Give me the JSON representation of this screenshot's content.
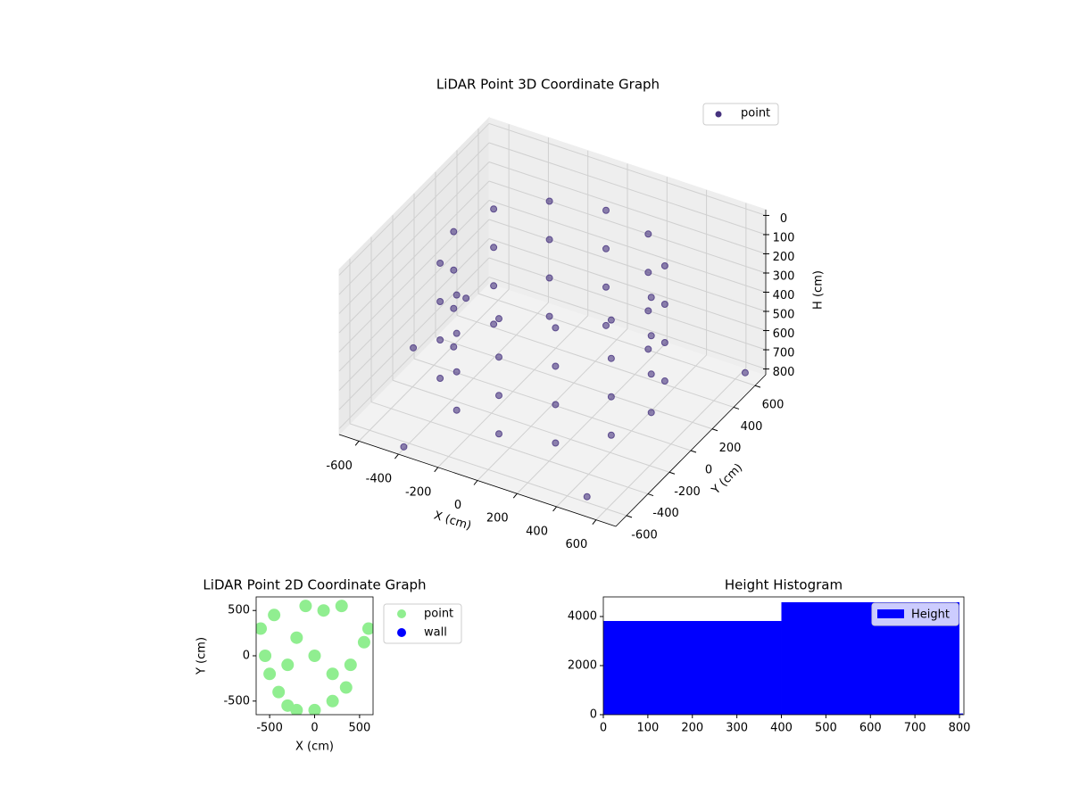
{
  "chart_data": [
    {
      "type": "scatter3d",
      "title": "LiDAR Point 3D Coordinate Graph",
      "x_label": "X (cm)",
      "y_label": "Y (cm)",
      "z_label": "H (cm)",
      "xlim": [
        -700,
        700
      ],
      "ylim": [
        -700,
        700
      ],
      "zlim": [
        830,
        -30
      ],
      "xticks": [
        -600,
        -400,
        -200,
        0,
        200,
        400,
        600
      ],
      "yticks": [
        -600,
        -400,
        -200,
        0,
        200,
        400,
        600
      ],
      "zticks": [
        0,
        100,
        200,
        300,
        400,
        500,
        600,
        700,
        800
      ],
      "grid": true,
      "legend": "upper right",
      "series": [
        {
          "name": "point",
          "color": "#46327e",
          "x": [
            500,
            433,
            250,
            0,
            -250,
            -433,
            -500,
            -433,
            -250,
            0,
            250,
            433,
            500,
            433,
            250,
            0,
            -250,
            -433,
            -500,
            -433,
            -250,
            0,
            250,
            433,
            500,
            433,
            250,
            0,
            -250,
            -433,
            -500,
            -433,
            -250,
            0,
            250,
            433,
            500,
            433,
            250,
            0,
            -250,
            -433,
            -500,
            -433,
            -250,
            0,
            250,
            433,
            -650,
            -600,
            500,
            650,
            -400
          ],
          "y": [
            0,
            250,
            433,
            500,
            433,
            250,
            0,
            -250,
            -433,
            -500,
            -433,
            -250,
            0,
            250,
            433,
            500,
            433,
            250,
            0,
            -250,
            -433,
            -500,
            -433,
            -250,
            0,
            250,
            433,
            500,
            433,
            250,
            0,
            -250,
            -433,
            -500,
            -433,
            -250,
            0,
            250,
            433,
            500,
            433,
            250,
            0,
            -250,
            -433,
            -500,
            -433,
            -250,
            -100,
            300,
            -600,
            600,
            -650
          ],
          "h": [
            100,
            100,
            100,
            100,
            100,
            100,
            100,
            100,
            100,
            100,
            100,
            100,
            300,
            300,
            300,
            300,
            300,
            300,
            300,
            300,
            300,
            300,
            300,
            300,
            500,
            500,
            500,
            500,
            500,
            500,
            500,
            500,
            500,
            500,
            500,
            500,
            700,
            700,
            700,
            700,
            700,
            700,
            700,
            700,
            700,
            700,
            700,
            700,
            700,
            650,
            800,
            780,
            820
          ]
        }
      ]
    },
    {
      "type": "scatter",
      "title": "LiDAR Point 2D Coordinate Graph",
      "x_label": "X (cm)",
      "y_label": "Y (cm)",
      "xlim": [
        -650,
        650
      ],
      "ylim": [
        -650,
        650
      ],
      "xticks": [
        -500,
        0,
        500
      ],
      "yticks": [
        -500,
        0,
        500
      ],
      "legend": "outside right",
      "series": [
        {
          "name": "point",
          "color": "#90ee90",
          "x": [
            -600,
            -550,
            -500,
            -400,
            -300,
            -200,
            0,
            200,
            350,
            400,
            100,
            -100,
            300,
            -450,
            600,
            550,
            -200,
            0,
            -300,
            200
          ],
          "y": [
            300,
            0,
            -200,
            -400,
            -550,
            -600,
            -600,
            -500,
            -350,
            -100,
            500,
            550,
            550,
            450,
            300,
            150,
            200,
            0,
            -100,
            -200
          ]
        },
        {
          "name": "wall",
          "color": "#0000ff",
          "x": [],
          "y": []
        }
      ]
    },
    {
      "type": "histogram",
      "title": "Height Histogram",
      "bins": [
        0,
        400,
        800,
        808
      ],
      "counts": [
        3818,
        4582,
        50
      ],
      "color": "#0000ff",
      "name": "Height",
      "legend": "upper right",
      "xlim": [
        0,
        810
      ],
      "ylim": [
        0,
        4800
      ],
      "xticks": [
        0,
        100,
        200,
        300,
        400,
        500,
        600,
        700,
        800
      ],
      "yticks": [
        0,
        2000,
        4000
      ]
    }
  ]
}
